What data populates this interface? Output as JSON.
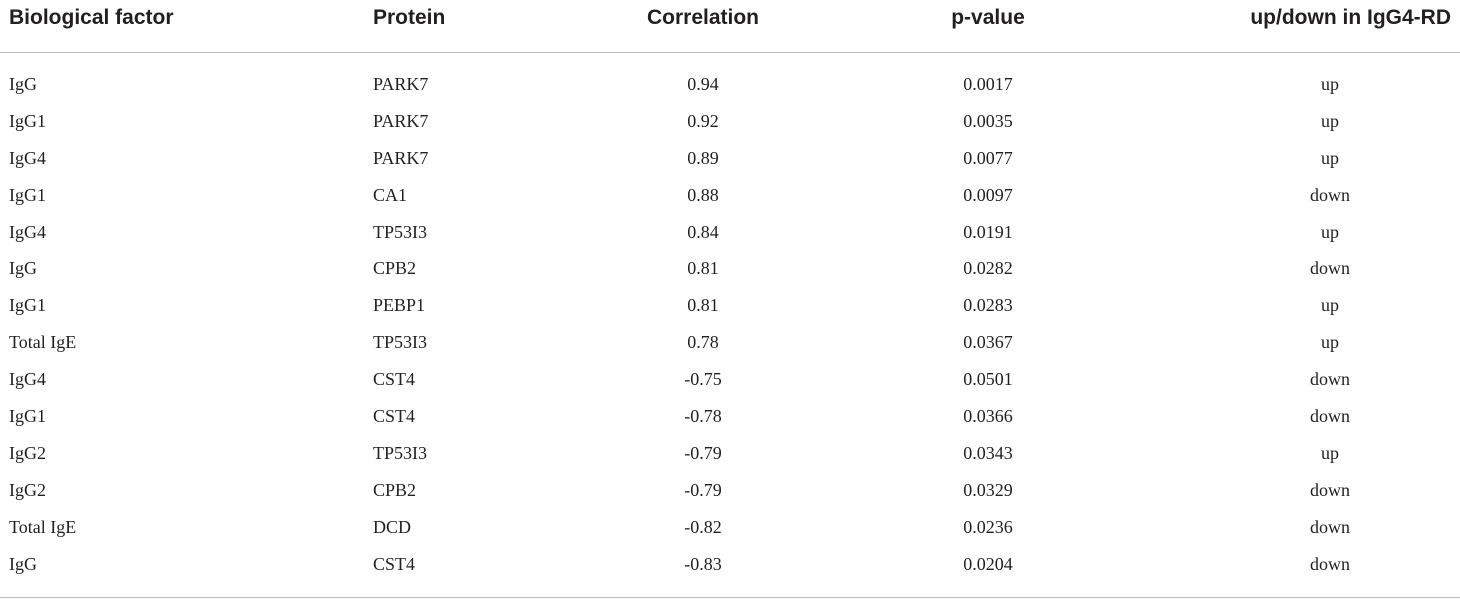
{
  "table": {
    "headers": {
      "factor": "Biological factor",
      "protein": "Protein",
      "correlation": "Correlation",
      "pvalue": "p-value",
      "direction": "up/down in IgG4-RD"
    },
    "rows": [
      {
        "factor": "IgG",
        "protein": "PARK7",
        "correlation": "0.94",
        "pvalue": "0.0017",
        "direction": "up"
      },
      {
        "factor": "IgG1",
        "protein": "PARK7",
        "correlation": "0.92",
        "pvalue": "0.0035",
        "direction": "up"
      },
      {
        "factor": "IgG4",
        "protein": "PARK7",
        "correlation": "0.89",
        "pvalue": "0.0077",
        "direction": "up"
      },
      {
        "factor": "IgG1",
        "protein": "CA1",
        "correlation": "0.88",
        "pvalue": "0.0097",
        "direction": "down"
      },
      {
        "factor": "IgG4",
        "protein": "TP53I3",
        "correlation": "0.84",
        "pvalue": "0.0191",
        "direction": "up"
      },
      {
        "factor": "IgG",
        "protein": "CPB2",
        "correlation": "0.81",
        "pvalue": "0.0282",
        "direction": "down"
      },
      {
        "factor": "IgG1",
        "protein": "PEBP1",
        "correlation": "0.81",
        "pvalue": "0.0283",
        "direction": "up"
      },
      {
        "factor": "Total IgE",
        "protein": "TP53I3",
        "correlation": "0.78",
        "pvalue": "0.0367",
        "direction": "up"
      },
      {
        "factor": "IgG4",
        "protein": "CST4",
        "correlation": "-0.75",
        "pvalue": "0.0501",
        "direction": "down"
      },
      {
        "factor": "IgG1",
        "protein": "CST4",
        "correlation": "-0.78",
        "pvalue": "0.0366",
        "direction": "down"
      },
      {
        "factor": "IgG2",
        "protein": "TP53I3",
        "correlation": "-0.79",
        "pvalue": "0.0343",
        "direction": "up"
      },
      {
        "factor": "IgG2",
        "protein": "CPB2",
        "correlation": "-0.79",
        "pvalue": "0.0329",
        "direction": "down"
      },
      {
        "factor": "Total IgE",
        "protein": "DCD",
        "correlation": "-0.82",
        "pvalue": "0.0236",
        "direction": "down"
      },
      {
        "factor": "IgG",
        "protein": "CST4",
        "correlation": "-0.83",
        "pvalue": "0.0204",
        "direction": "down"
      }
    ]
  }
}
